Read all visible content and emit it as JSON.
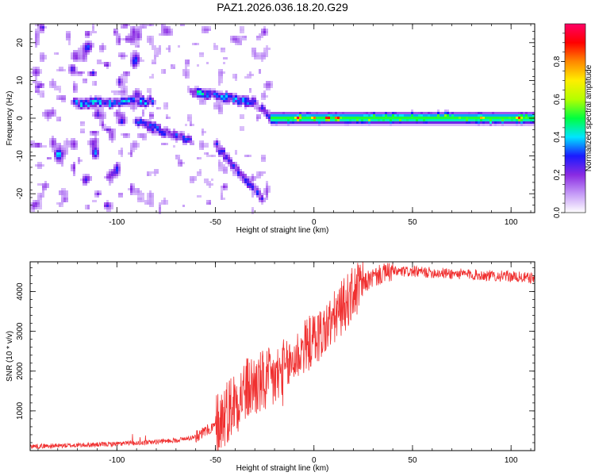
{
  "title": "PAZ1.2026.036.18.20.G29",
  "chart_data": [
    {
      "type": "heatmap",
      "xlabel": "Height of straight line (km)",
      "ylabel": "Frequency (Hz)",
      "xlim": [
        -144,
        112
      ],
      "ylim": [
        -25,
        25
      ],
      "x_ticks": [
        -100,
        -50,
        0,
        50,
        100
      ],
      "y_ticks": [
        -20,
        -10,
        0,
        10,
        20
      ],
      "colorbar": {
        "label": "Normalized spectral amplitude",
        "range": [
          0,
          1
        ],
        "ticks": [
          "0.0",
          "0.2",
          "0.4",
          "0.6",
          "0.8"
        ],
        "colors": [
          "#ffffff",
          "#c59af7",
          "#8a2be2",
          "#1a1aff",
          "#00e5ff",
          "#00ff40",
          "#b4ff00",
          "#ffee00",
          "#ff8800",
          "#ff0000",
          "#ff0066"
        ]
      },
      "tones": [
        {
          "x0": -122,
          "x1": -82,
          "f0": 4,
          "f1": 4.5,
          "amp": 0.38
        },
        {
          "x0": -90,
          "x1": -62,
          "f0": -1,
          "f1": -6,
          "amp": 0.32
        },
        {
          "x0": -62,
          "x1": -30,
          "f0": 7,
          "f1": 4,
          "amp": 0.4
        },
        {
          "x0": -50,
          "x1": -26,
          "f0": -7,
          "f1": -21,
          "amp": 0.3
        },
        {
          "x0": -30,
          "x1": -20,
          "f0": 4,
          "f1": 0,
          "amp": 0.25
        },
        {
          "x0": -22,
          "x1": 112,
          "f0": 0,
          "f1": 0,
          "amp": 0.5
        }
      ],
      "carrier_hotspots": [
        {
          "x": -8,
          "amp": 0.97
        },
        {
          "x": 0,
          "amp": 0.85
        },
        {
          "x": 7,
          "amp": 0.98
        },
        {
          "x": 12,
          "amp": 0.96
        },
        {
          "x": 85,
          "amp": 0.78
        },
        {
          "x": 104,
          "amp": 0.9
        }
      ]
    },
    {
      "type": "line",
      "xlabel": "Height of straight line (km)",
      "ylabel": "SNR (10 * v/v)",
      "xlim": [
        -144,
        112
      ],
      "ylim": [
        0,
        4750
      ],
      "x_ticks": [
        -100,
        -50,
        0,
        50,
        100
      ],
      "y_ticks": [
        1000,
        2000,
        3000,
        4000
      ],
      "color": "#f03030",
      "series": [
        {
          "name": "SNR",
          "x": [
            -144,
            -130,
            -110,
            -90,
            -80,
            -70,
            -60,
            -50,
            -45,
            -40,
            -35,
            -30,
            -25,
            -20,
            -15,
            -10,
            -5,
            0,
            5,
            10,
            15,
            20,
            25,
            30,
            35,
            40,
            50,
            60,
            70,
            80,
            90,
            100,
            112
          ],
          "y": [
            110,
            120,
            150,
            190,
            220,
            260,
            350,
            620,
            950,
            1250,
            1500,
            1650,
            1700,
            1800,
            2000,
            2300,
            2600,
            2800,
            3000,
            3300,
            3650,
            3950,
            4200,
            4350,
            4450,
            4500,
            4500,
            4480,
            4450,
            4430,
            4400,
            4380,
            4330
          ]
        }
      ]
    }
  ]
}
